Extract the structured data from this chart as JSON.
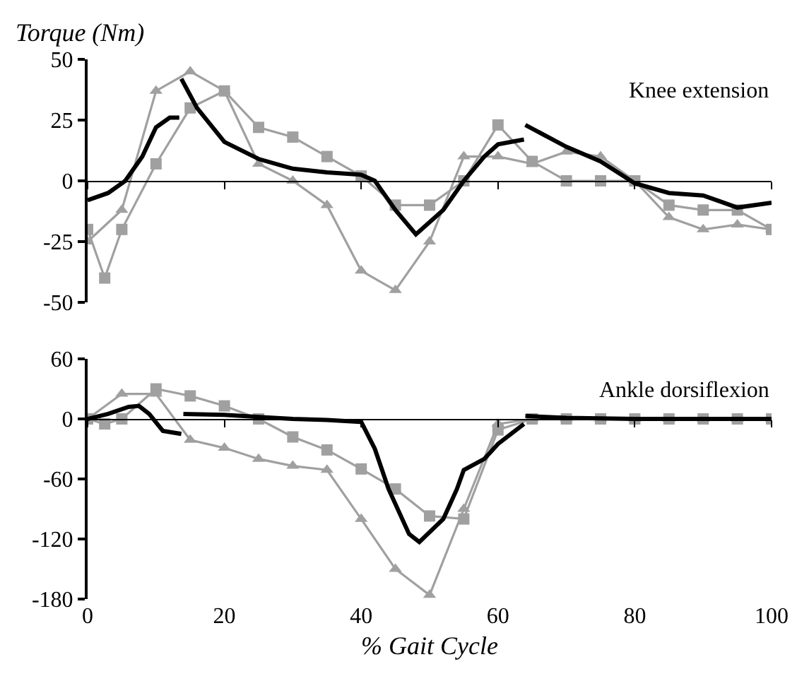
{
  "chart_data": [
    {
      "type": "line",
      "title": "Knee extension",
      "ylabel": "Torque (Nm)",
      "xlim": [
        0,
        100
      ],
      "xticks": [
        0,
        20,
        40,
        60,
        80,
        100
      ],
      "ylim": [
        -50,
        50
      ],
      "yticks": [
        -50,
        -25,
        0,
        25,
        50
      ],
      "tick_labels": "y",
      "series": [
        {
          "color": "#a0a0a0",
          "marker": "square",
          "x": [
            0,
            2.5,
            5,
            10,
            15,
            20,
            25,
            30,
            35,
            40,
            45,
            50,
            55,
            60,
            65,
            70,
            75,
            80,
            85,
            90,
            95,
            100
          ],
          "values": [
            -20,
            -40,
            -20,
            7,
            30,
            37,
            22,
            18,
            10,
            2,
            -10,
            -10,
            0,
            23,
            8,
            0,
            0,
            0,
            -10,
            -12,
            -12,
            -20
          ]
        },
        {
          "color": "#a0a0a0",
          "marker": "triangle",
          "x": [
            0,
            5,
            10,
            15,
            20,
            25,
            30,
            35,
            40,
            45,
            50,
            55,
            60,
            65,
            70,
            75,
            80,
            85,
            90,
            95,
            100
          ],
          "values": [
            -25,
            -12,
            37,
            45,
            37,
            7,
            0,
            -10,
            -37,
            -45,
            -25,
            10,
            10,
            7,
            12,
            10,
            0,
            -15,
            -20,
            -18,
            -20
          ]
        },
        {
          "color": "#000000",
          "marker": "none",
          "x": [
            0,
            3,
            5.5,
            8,
            10,
            12,
            13.4,
            13.5,
            13.7,
            16,
            20,
            25,
            30,
            35,
            40,
            42,
            45,
            48,
            52,
            55,
            58,
            60,
            63.8,
            63.9,
            64,
            70,
            75,
            80,
            85,
            90,
            95,
            100
          ],
          "values": [
            -8,
            -5,
            0,
            10,
            22,
            26,
            26,
            null,
            42,
            30,
            16,
            9,
            5,
            3.5,
            2.5,
            0,
            -12,
            -22,
            -12,
            0,
            10,
            15,
            17,
            null,
            23,
            14,
            8,
            -1,
            -5,
            -6,
            -11,
            -9
          ]
        }
      ]
    },
    {
      "type": "line",
      "title": "Ankle dorsiflexion",
      "xlabel": "% Gait Cycle",
      "xlim": [
        0,
        100
      ],
      "xticks": [
        0,
        20,
        40,
        60,
        80,
        100
      ],
      "ylim": [
        -180,
        60
      ],
      "yticks": [
        -180,
        -120,
        -60,
        0,
        60
      ],
      "series": [
        {
          "color": "#a0a0a0",
          "marker": "square",
          "x": [
            0,
            2.5,
            5,
            10,
            15,
            20,
            25,
            30,
            35,
            40,
            45,
            50,
            55,
            60,
            65,
            70,
            75,
            80,
            85,
            90,
            95,
            100
          ],
          "values": [
            0,
            -5,
            0,
            30,
            23,
            13,
            0,
            -18,
            -31,
            -50,
            -70,
            -97,
            -100,
            -11,
            0,
            0,
            0,
            0,
            0,
            0,
            0,
            0
          ]
        },
        {
          "color": "#a0a0a0",
          "marker": "triangle",
          "x": [
            0,
            5,
            10,
            15,
            20,
            25,
            30,
            35,
            40,
            45,
            50,
            55,
            60,
            65,
            70,
            75,
            80,
            85,
            90,
            95,
            100
          ],
          "values": [
            0,
            25,
            25,
            -21,
            -29,
            -40,
            -47,
            -51,
            -100,
            -150,
            -176,
            -90,
            -5,
            0,
            0,
            0,
            0,
            0,
            0,
            0,
            0
          ]
        },
        {
          "color": "#000000",
          "marker": "none",
          "x": [
            0,
            3,
            6,
            7.5,
            9,
            11,
            13.7,
            13.8,
            14,
            20,
            25,
            30,
            35,
            40,
            42,
            44,
            47,
            48.5,
            52,
            54,
            55,
            58,
            60,
            63.8,
            63.9,
            64,
            70,
            80,
            90,
            100
          ],
          "values": [
            0,
            5,
            12,
            13,
            5,
            -12,
            -15,
            null,
            5,
            4,
            2,
            0,
            -1,
            -3,
            -30,
            -70,
            -115,
            -123,
            -100,
            -70,
            -51,
            -40,
            -25,
            -5,
            null,
            3,
            1,
            0,
            0,
            0
          ]
        }
      ]
    }
  ]
}
